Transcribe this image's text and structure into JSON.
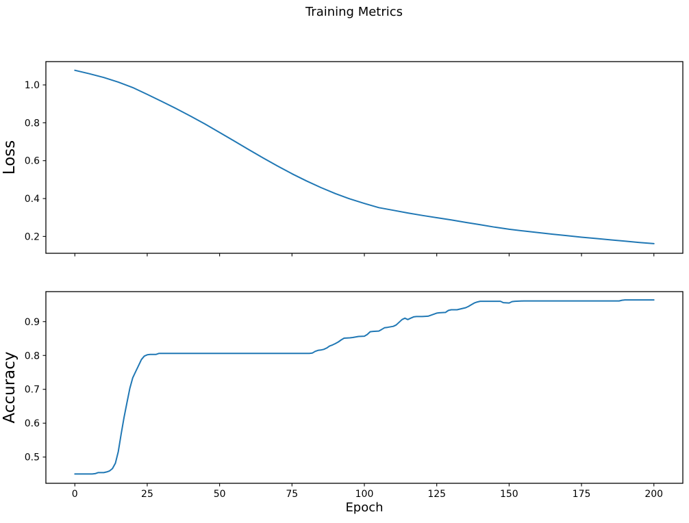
{
  "figure": {
    "title": "Training Metrics",
    "background": "#ffffff",
    "line_color": "#1f77b4",
    "text_color": "#000000"
  },
  "chart_data": [
    {
      "id": "loss",
      "type": "line",
      "title": "",
      "xlabel": "",
      "ylabel": "Loss",
      "grid": false,
      "legend_position": "none",
      "xlim": [
        -10,
        210
      ],
      "ylim": [
        0.111,
        1.123
      ],
      "xticks": [
        0,
        25,
        50,
        75,
        100,
        125,
        150,
        175,
        200
      ],
      "xtick_labels": [
        "",
        "",
        "",
        "",
        "",
        "",
        "",
        "",
        ""
      ],
      "yticks": [
        0.2,
        0.4,
        0.6,
        0.8,
        1.0
      ],
      "ytick_labels": [
        "0.2",
        "0.4",
        "0.6",
        "0.8",
        "1.0"
      ],
      "x": [
        0,
        5,
        10,
        15,
        20,
        25,
        30,
        35,
        40,
        45,
        50,
        55,
        60,
        65,
        70,
        75,
        80,
        85,
        90,
        95,
        100,
        105,
        110,
        115,
        120,
        125,
        130,
        135,
        140,
        145,
        150,
        155,
        160,
        165,
        170,
        175,
        180,
        185,
        190,
        195,
        200
      ],
      "y": [
        1.077,
        1.059,
        1.039,
        1.015,
        0.986,
        0.95,
        0.913,
        0.875,
        0.835,
        0.793,
        0.749,
        0.704,
        0.659,
        0.615,
        0.572,
        0.531,
        0.493,
        0.458,
        0.426,
        0.398,
        0.374,
        0.352,
        0.338,
        0.324,
        0.311,
        0.299,
        0.287,
        0.274,
        0.262,
        0.249,
        0.238,
        0.229,
        0.22,
        0.212,
        0.204,
        0.196,
        0.189,
        0.182,
        0.175,
        0.168,
        0.162
      ]
    },
    {
      "id": "accuracy",
      "type": "line",
      "title": "",
      "xlabel": "Epoch",
      "ylabel": "Accuracy",
      "grid": false,
      "legend_position": "none",
      "xlim": [
        -10,
        210
      ],
      "ylim": [
        0.4225,
        0.9885
      ],
      "xticks": [
        0,
        25,
        50,
        75,
        100,
        125,
        150,
        175,
        200
      ],
      "xtick_labels": [
        "0",
        "25",
        "50",
        "75",
        "100",
        "125",
        "150",
        "175",
        "200"
      ],
      "yticks": [
        0.5,
        0.6,
        0.7,
        0.8,
        0.9
      ],
      "ytick_labels": [
        "0.5",
        "0.6",
        "0.7",
        "0.8",
        "0.9"
      ],
      "x": [
        0,
        3,
        6,
        7,
        8,
        9,
        10,
        11,
        12,
        13,
        14,
        15,
        16,
        17,
        18,
        19,
        20,
        21,
        22,
        23,
        24,
        25,
        26,
        28,
        29,
        32,
        40,
        50,
        60,
        70,
        80,
        81,
        82,
        83,
        84,
        85,
        86,
        87,
        88,
        89,
        90,
        91,
        92,
        93,
        95,
        96,
        98,
        100,
        101,
        102,
        103,
        105,
        106,
        107,
        108,
        110,
        111,
        112,
        113,
        114,
        115,
        116,
        117,
        118,
        120,
        122,
        124,
        125,
        126,
        128,
        129,
        130,
        132,
        133,
        135,
        136,
        137,
        138,
        139,
        140,
        143,
        146,
        147,
        148,
        150,
        151,
        152,
        155,
        160,
        170,
        180,
        188,
        189,
        190,
        195,
        200
      ],
      "y": [
        0.45,
        0.45,
        0.45,
        0.451,
        0.454,
        0.454,
        0.454,
        0.456,
        0.459,
        0.466,
        0.482,
        0.516,
        0.568,
        0.617,
        0.661,
        0.703,
        0.734,
        0.752,
        0.77,
        0.788,
        0.798,
        0.802,
        0.803,
        0.803,
        0.806,
        0.806,
        0.806,
        0.806,
        0.806,
        0.806,
        0.806,
        0.806,
        0.807,
        0.812,
        0.815,
        0.816,
        0.818,
        0.822,
        0.828,
        0.831,
        0.835,
        0.84,
        0.846,
        0.851,
        0.852,
        0.853,
        0.856,
        0.857,
        0.862,
        0.87,
        0.871,
        0.872,
        0.877,
        0.882,
        0.883,
        0.886,
        0.89,
        0.898,
        0.906,
        0.91,
        0.906,
        0.91,
        0.914,
        0.915,
        0.915,
        0.916,
        0.922,
        0.925,
        0.926,
        0.927,
        0.933,
        0.935,
        0.935,
        0.937,
        0.941,
        0.945,
        0.95,
        0.955,
        0.958,
        0.96,
        0.96,
        0.96,
        0.96,
        0.956,
        0.955,
        0.959,
        0.96,
        0.961,
        0.961,
        0.961,
        0.961,
        0.961,
        0.963,
        0.964,
        0.964,
        0.964
      ]
    }
  ]
}
